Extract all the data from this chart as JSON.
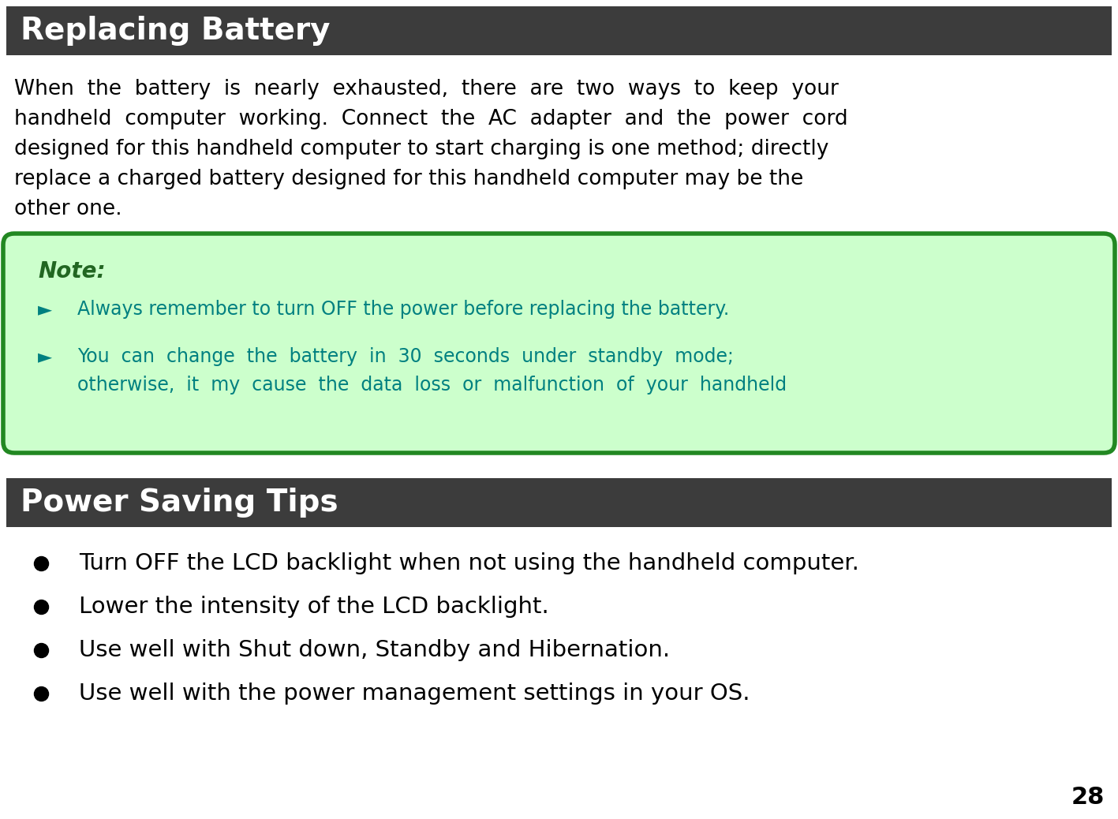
{
  "page_number": "28",
  "header1_text": "Replacing Battery",
  "header1_bg": "#3c3c3c",
  "header1_fg": "#ffffff",
  "header2_text": "Power Saving Tips",
  "header2_bg": "#3c3c3c",
  "header2_fg": "#ffffff",
  "note_bg": "#ccffcc",
  "note_border": "#228822",
  "note_label": "Note:",
  "note_label_color": "#226622",
  "note_item1": "Always remember to turn OFF the power before replacing the battery.",
  "note_item2a": "You  can  change  the  battery  in  30  seconds  under  standby  mode;",
  "note_item2b": "otherwise,  it  my  cause  the  data  loss  or  malfunction  of  your  handheld",
  "note_text_color": "#008080",
  "bullet_items": [
    "Turn OFF the LCD backlight when not using the handheld computer.",
    "Lower the intensity of the LCD backlight.",
    "Use well with Shut down, Standby and Hibernation.",
    "Use well with the power management settings in your OS."
  ],
  "bullet_color": "#000000",
  "body_font_color": "#000000",
  "bg_color": "#ffffff",
  "body_line1": "When  the  battery  is  nearly  exhausted,  there  are  two  ways  to  keep  your",
  "body_line2": "handheld  computer  working.  Connect  the  AC  adapter  and  the  power  cord",
  "body_line3": "designed for this handheld computer to start charging is one method; directly",
  "body_line4": "replace a charged battery designed for this handheld computer may be the",
  "body_line5": "other one."
}
